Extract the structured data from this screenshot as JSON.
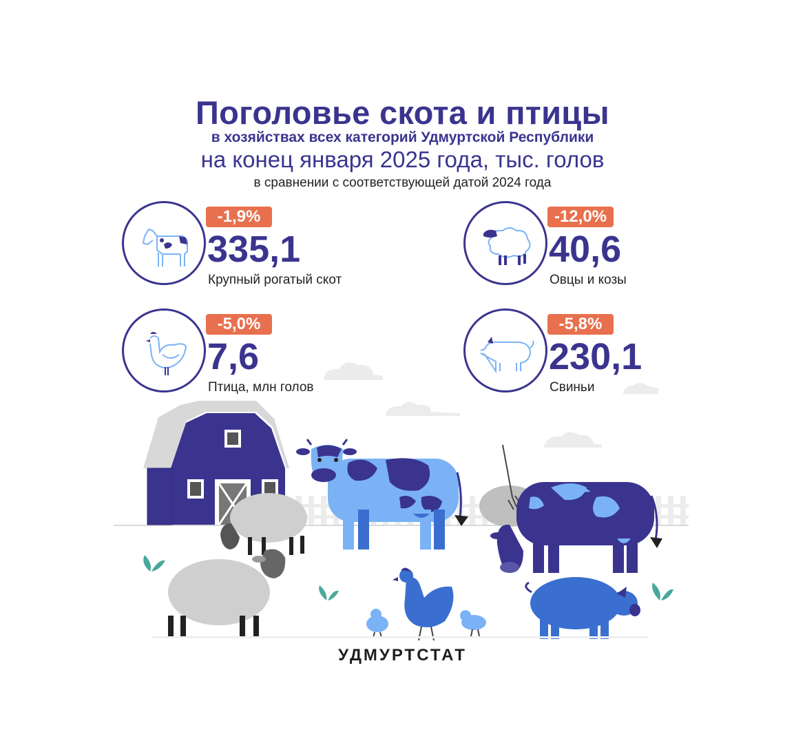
{
  "header": {
    "title": "Поголовье скота и птицы",
    "subtitle": "в хозяйствах всех категорий Удмуртской Республики",
    "period": "на конец января 2025 года, тыс. голов",
    "comparison": "в сравнении с соответствующей датой 2024 года"
  },
  "stats": [
    {
      "change": "-1,9%",
      "value": "335,1",
      "label": "Крупный рогатый скот",
      "icon": "cow-icon"
    },
    {
      "change": "-12,0%",
      "value": "40,6",
      "label": "Овцы и козы",
      "icon": "sheep-icon"
    },
    {
      "change": "-5,0%",
      "value": "7,6",
      "label": "Птица, млн голов",
      "icon": "chicken-icon"
    },
    {
      "change": "-5,8%",
      "value": "230,1",
      "label": "Свиньи",
      "icon": "pig-icon"
    }
  ],
  "footer": {
    "logo": "УДМУРТСТАТ"
  },
  "colors": {
    "primary": "#3a348f",
    "badge": "#e8704e",
    "light_blue": "#7ab2f5",
    "mid_blue": "#3a6fd0"
  }
}
